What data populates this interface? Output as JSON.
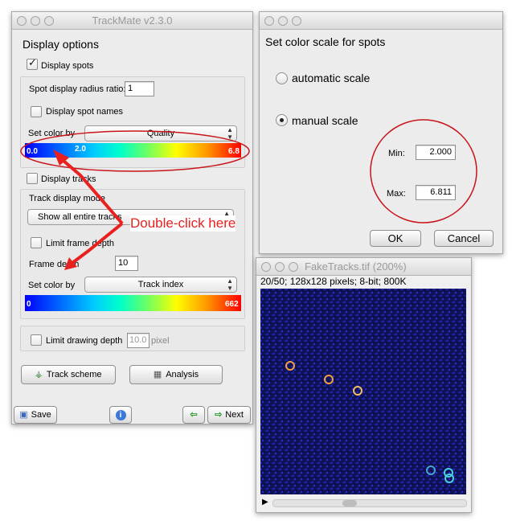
{
  "trackmate": {
    "title": "TrackMate v2.3.0",
    "display_options": "Display options",
    "display_spots": "Display spots",
    "spot_radius_label": "Spot display radius ratio:",
    "spot_radius_value": "1",
    "display_spot_names": "Display spot names",
    "set_color_by_label": "Set color by",
    "spot_color_by": "Quality",
    "spot_scale_min": "0.0",
    "spot_scale_mid": "2.0",
    "spot_scale_max": "6.8",
    "display_tracks": "Display tracks",
    "track_display_mode_label": "Track display mode",
    "track_display_mode": "Show all entire tracks",
    "limit_frame_depth": "Limit frame depth",
    "frame_depth_label": "Frame depth",
    "frame_depth_value": "10",
    "track_color_by": "Track index",
    "track_scale_min": "0",
    "track_scale_max": "662",
    "limit_drawing_depth": "Limit drawing depth",
    "drawing_depth_value": "10.0",
    "drawing_depth_unit": "pixel",
    "track_scheme_button": "Track scheme",
    "analysis_button": "Analysis",
    "save_button": "Save",
    "next_button": "Next"
  },
  "color_scale_dialog": {
    "title": "Set color scale for spots",
    "automatic": "automatic scale",
    "manual": "manual scale",
    "selected": "manual",
    "min_label": "Min:",
    "min_value": "2.000",
    "max_label": "Max:",
    "max_value": "6.811",
    "ok": "OK",
    "cancel": "Cancel"
  },
  "annotation": {
    "text": "Double-click here",
    "color": "#e8201e"
  },
  "image_window": {
    "title": "FakeTracks.tif (200%)",
    "info": "20/50; 128x128 pixels; 8-bit; 800K"
  }
}
